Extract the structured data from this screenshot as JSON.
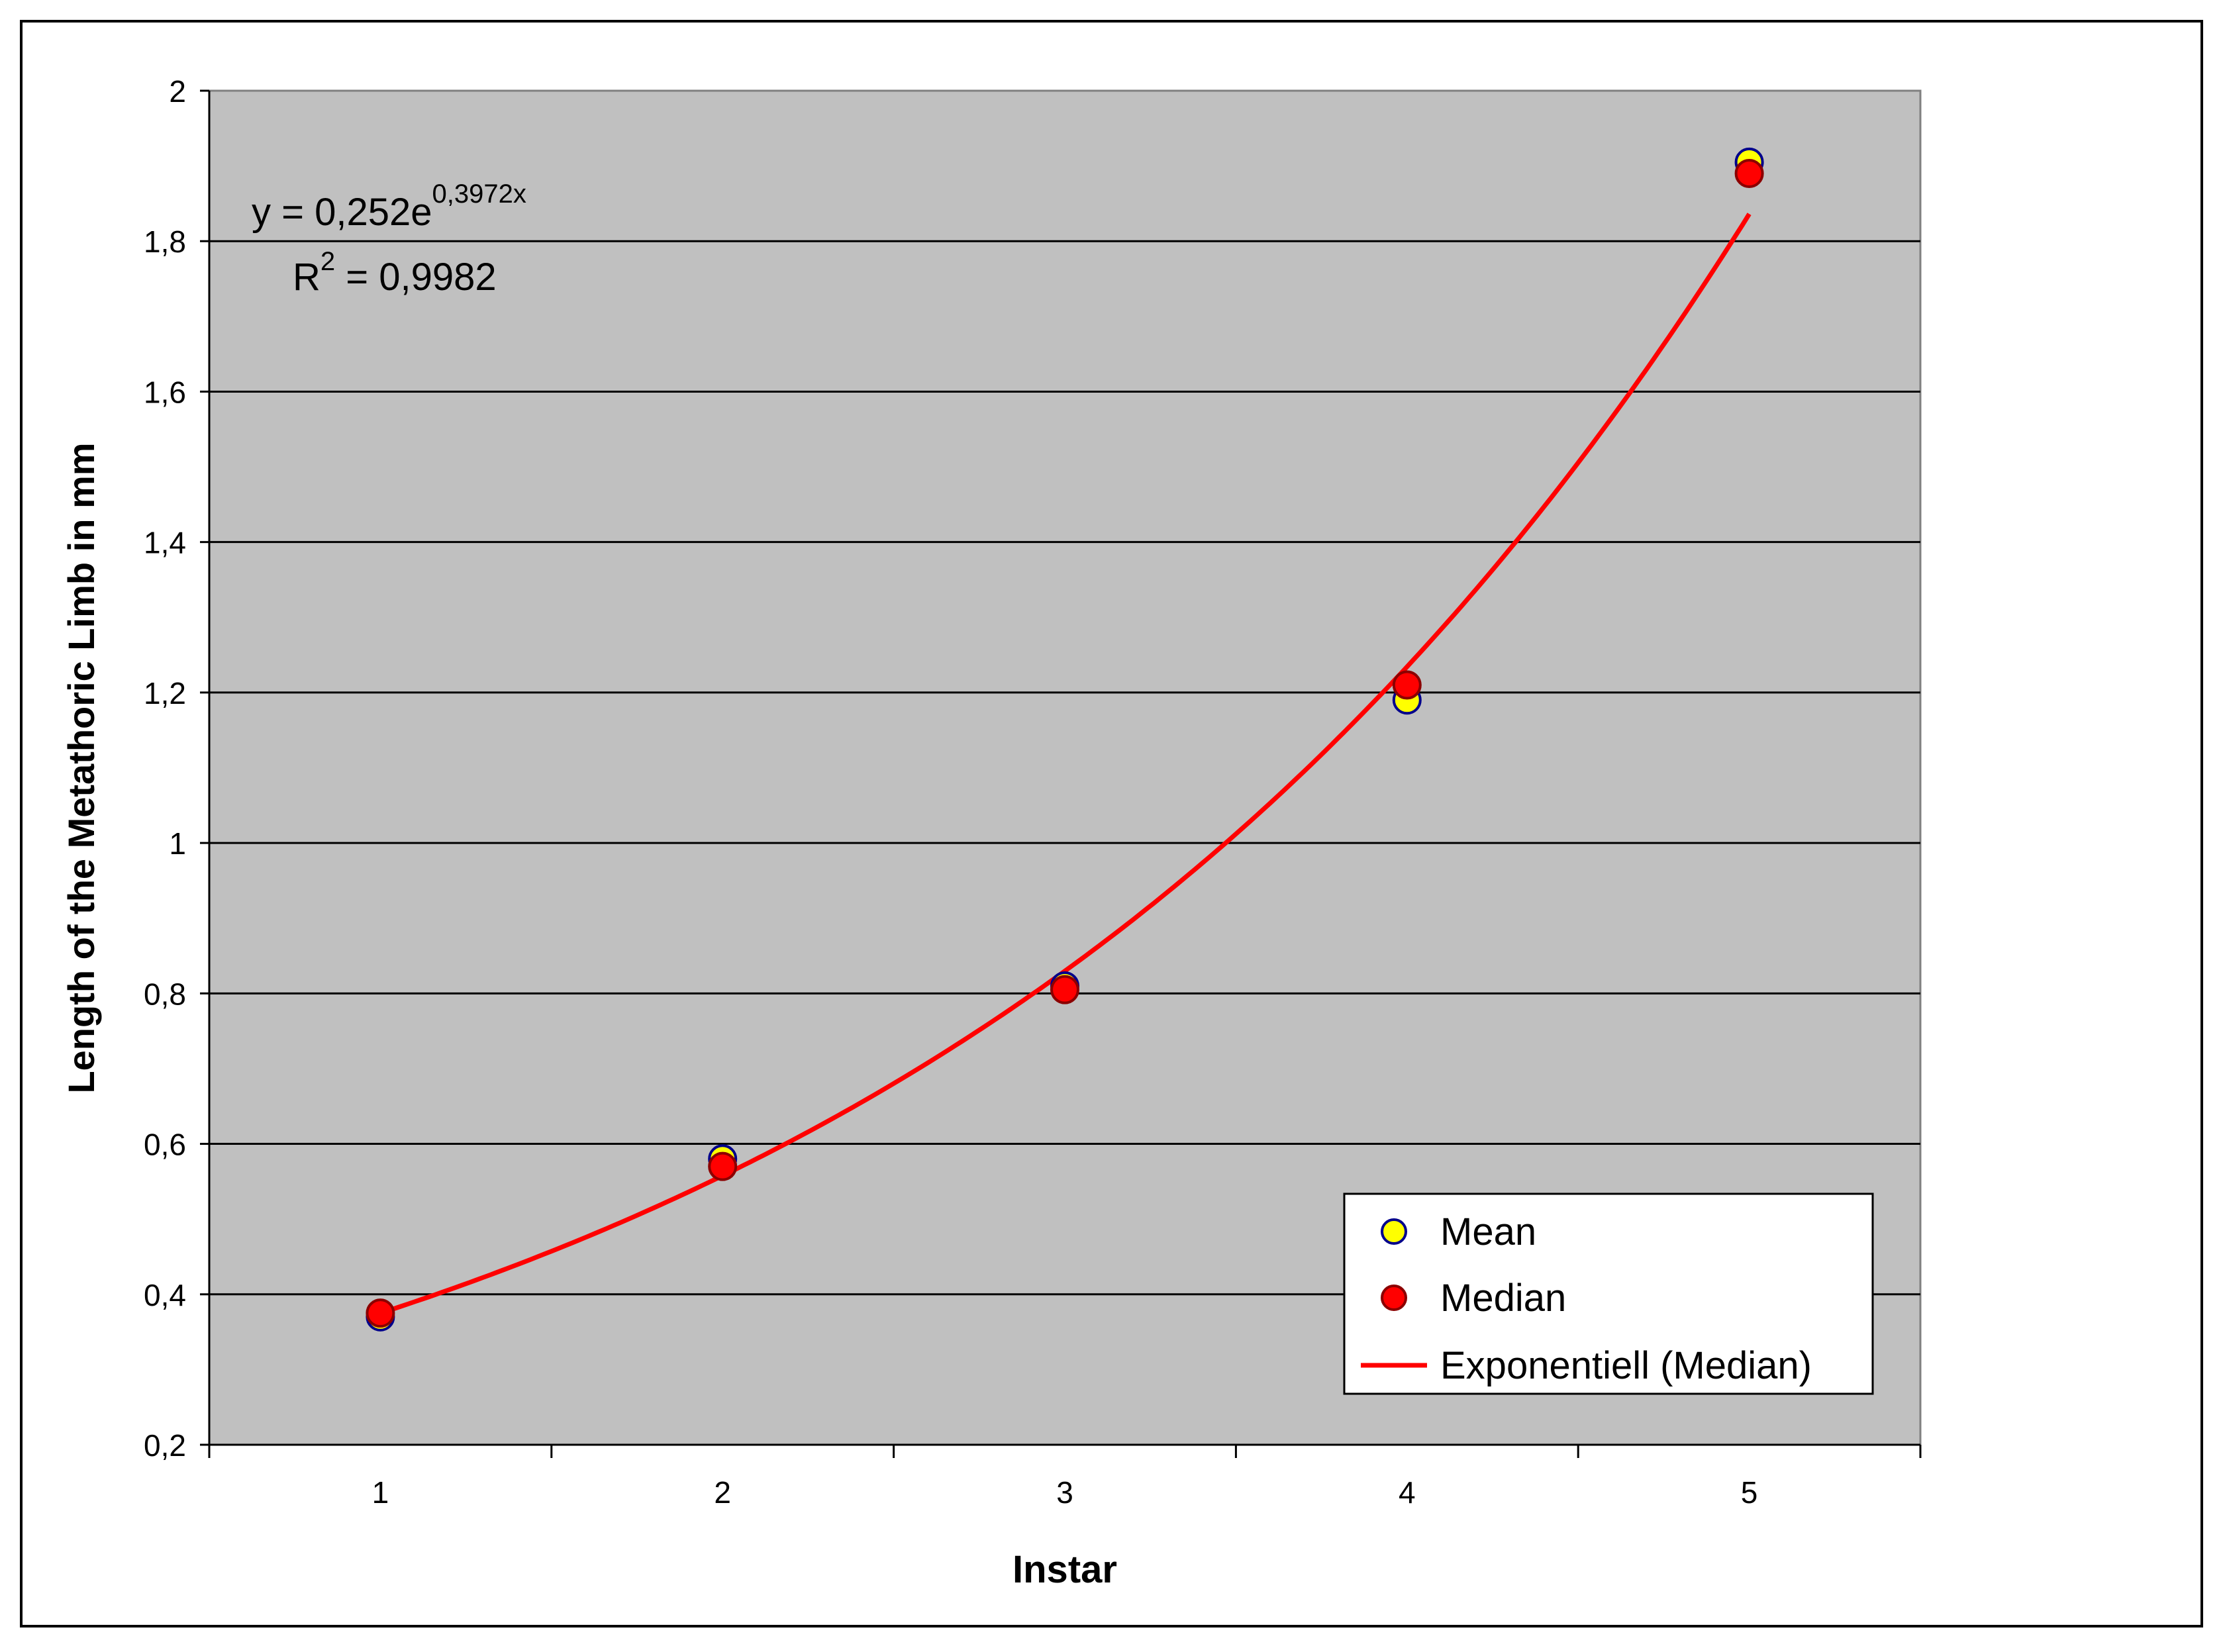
{
  "chart_data": {
    "type": "scatter",
    "xlabel": "Instar",
    "ylabel": "Length of the Metathoric Limb in mm",
    "xlim": [
      0.5,
      5.5
    ],
    "ylim": [
      0.2,
      2.0
    ],
    "x_ticks": [
      "1",
      "2",
      "3",
      "4",
      "5"
    ],
    "y_ticks": [
      "0,2",
      "0,4",
      "0,6",
      "0,8",
      "1",
      "1,2",
      "1,4",
      "1,6",
      "1,8",
      "2"
    ],
    "y_tick_values": [
      0.2,
      0.4,
      0.6,
      0.8,
      1.0,
      1.2,
      1.4,
      1.6,
      1.8,
      2.0
    ],
    "grid": "horizontal",
    "background": "#c0c0c0",
    "series": [
      {
        "name": "Mean",
        "x": [
          1,
          2,
          3,
          4,
          5
        ],
        "y": [
          0.37,
          0.58,
          0.81,
          1.19,
          1.905
        ],
        "color": "#ffff00",
        "edge": "#00008b"
      },
      {
        "name": "Median",
        "x": [
          1,
          2,
          3,
          4,
          5
        ],
        "y": [
          0.375,
          0.57,
          0.805,
          1.21,
          1.89
        ],
        "color": "#ff0000",
        "edge": "#8b0000"
      }
    ],
    "trendline": {
      "name": "Exponentiell (Median)",
      "type": "exponential",
      "a": 0.252,
      "b": 0.3972,
      "x_range": [
        1,
        5
      ],
      "color": "#ff0000"
    },
    "equation": {
      "prefix": "y = 0,252e",
      "exponent": "0,3972x",
      "r2_prefix": "R",
      "r2_sup": "2",
      "r2_suffix": " = 0,9982"
    },
    "legend": {
      "position": "bottom-right",
      "entries": [
        "Mean",
        "Median",
        "Exponentiell (Median)"
      ]
    }
  }
}
